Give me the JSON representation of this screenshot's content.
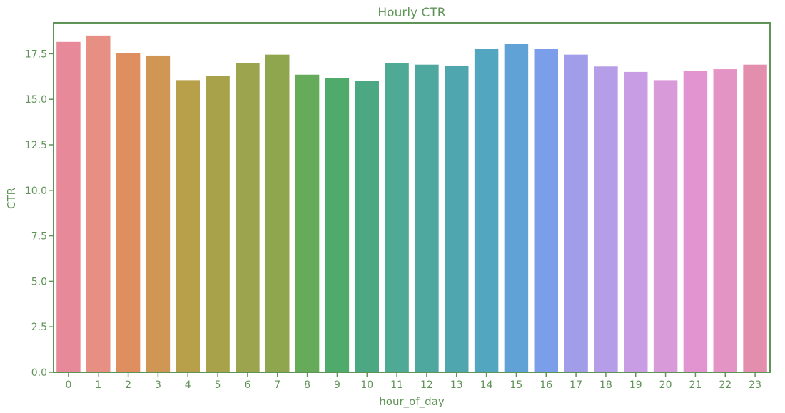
{
  "colors": {
    "text": "#5f9457",
    "frame": "#5f9457",
    "background": "#ffffff"
  },
  "chart_data": {
    "type": "bar",
    "title": "Hourly CTR",
    "xlabel": "hour_of_day",
    "ylabel": "CTR",
    "ylim": [
      0,
      19.2
    ],
    "yticks": [
      0.0,
      2.5,
      5.0,
      7.5,
      10.0,
      12.5,
      15.0,
      17.5
    ],
    "ytick_labels": [
      "0.0",
      "2.5",
      "5.0",
      "7.5",
      "10.0",
      "12.5",
      "15.0",
      "17.5"
    ],
    "grid": false,
    "categories": [
      "0",
      "1",
      "2",
      "3",
      "4",
      "5",
      "6",
      "7",
      "8",
      "9",
      "10",
      "11",
      "12",
      "13",
      "14",
      "15",
      "16",
      "17",
      "18",
      "19",
      "20",
      "21",
      "22",
      "23"
    ],
    "values": [
      18.15,
      18.5,
      17.55,
      17.4,
      16.05,
      16.3,
      17.0,
      17.45,
      16.35,
      16.15,
      16.0,
      17.0,
      16.9,
      16.85,
      17.75,
      18.05,
      17.75,
      17.45,
      16.8,
      16.5,
      16.05,
      16.55,
      16.65,
      16.9
    ],
    "bar_colors": [
      "#e8899a",
      "#e88f84",
      "#df8f5f",
      "#cf9753",
      "#b89f49",
      "#a8a24b",
      "#9ca44e",
      "#8fa64f",
      "#65ab5a",
      "#50aa6c",
      "#4ca883",
      "#4ea995",
      "#4fa8a0",
      "#50a6ae",
      "#53a6c0",
      "#60a1d6",
      "#7b9eea",
      "#a19de9",
      "#b59de7",
      "#c99de3",
      "#d89ad9",
      "#e294d1",
      "#e493c5",
      "#e38ead"
    ]
  }
}
